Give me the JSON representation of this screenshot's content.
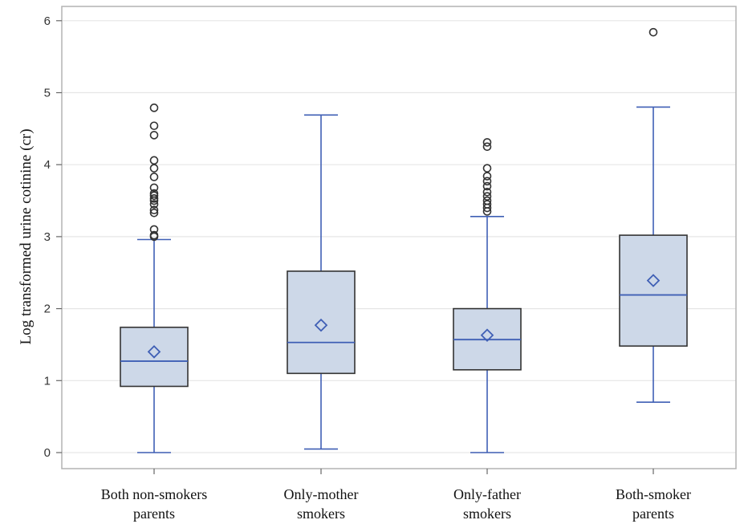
{
  "chart_data": {
    "type": "box",
    "title": "",
    "xlabel": "",
    "ylabel": "Log transformed urine cotinine (cr)",
    "ylim": [
      -0.2,
      6.2
    ],
    "yticks": [
      "0",
      "1",
      "2",
      "3",
      "4",
      "5",
      "6"
    ],
    "grid": true,
    "legend": "none",
    "colors": {
      "box_fill": "#cdd8e8",
      "box_edge": "#333333",
      "whisker": "#3f5fb5",
      "median": "#3f5fb5",
      "mean_marker": "#3f5fb5",
      "outlier": "#333333",
      "grid": "#e6e6e6",
      "frame": "#b3b3b3"
    },
    "groups": [
      {
        "label_lines": [
          "Both non-smokers",
          "parents"
        ],
        "whisker_low": 0.0,
        "q1": 0.92,
        "median": 1.27,
        "q3": 1.74,
        "whisker_high": 2.96,
        "mean": 1.4,
        "outliers": [
          3.0,
          3.02,
          3.1,
          3.33,
          3.37,
          3.45,
          3.5,
          3.53,
          3.57,
          3.6,
          3.68,
          3.83,
          3.95,
          4.06,
          4.41,
          4.54,
          4.79
        ]
      },
      {
        "label_lines": [
          "Only-mother",
          "smokers"
        ],
        "whisker_low": 0.05,
        "q1": 1.1,
        "median": 1.53,
        "q3": 2.52,
        "whisker_high": 4.69,
        "mean": 1.77,
        "outliers": []
      },
      {
        "label_lines": [
          "Only-father",
          "smokers"
        ],
        "whisker_low": 0.0,
        "q1": 1.15,
        "median": 1.57,
        "q3": 2.0,
        "whisker_high": 3.28,
        "mean": 1.63,
        "outliers": [
          3.35,
          3.4,
          3.45,
          3.5,
          3.56,
          3.62,
          3.7,
          3.77,
          3.84,
          3.95,
          4.25,
          4.31
        ]
      },
      {
        "label_lines": [
          "Both-smoker",
          "parents"
        ],
        "whisker_low": 0.7,
        "q1": 1.48,
        "median": 2.19,
        "q3": 3.02,
        "whisker_high": 4.8,
        "mean": 2.39,
        "outliers": [
          5.84
        ]
      }
    ]
  }
}
